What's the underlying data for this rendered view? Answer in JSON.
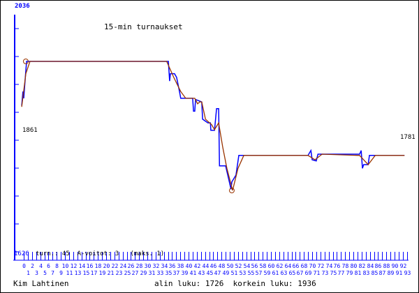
{
  "chart_data": {
    "type": "line",
    "title": "15-min turnaukset",
    "y_top_label": "2036",
    "y_bottom_label": "1626",
    "ylim": [
      1626,
      2036
    ],
    "start_label": "1861",
    "end_label": "1781",
    "info_line": "turn.: 45  A-voitot: 3   (maks. 1)",
    "x_ticks": [
      0,
      1,
      2,
      3,
      4,
      5,
      6,
      7,
      8,
      9,
      10,
      11,
      12,
      13,
      14,
      15,
      16,
      17,
      18,
      19,
      20,
      21,
      22,
      23,
      24,
      25,
      26,
      27,
      28,
      29,
      30,
      31,
      32,
      33,
      34,
      35,
      36,
      37,
      38,
      39,
      40,
      41,
      42,
      43,
      44,
      45,
      46,
      47,
      48,
      49,
      50,
      51,
      52,
      53,
      54,
      55,
      56,
      57,
      58,
      59,
      60,
      61,
      62,
      63,
      64,
      65,
      66,
      67,
      68,
      69,
      70,
      71,
      72,
      73,
      74,
      75,
      76,
      77,
      78,
      79,
      80,
      81,
      82,
      83,
      84,
      85,
      86,
      87,
      88,
      89,
      90,
      91,
      92,
      93
    ],
    "colors": {
      "rating": "#0000ff",
      "average": "#993300",
      "axis": "#0000ff"
    },
    "series": [
      {
        "x": [
          -0.5,
          -0.2,
          0,
          0.5,
          0.7,
          35.1,
          35.4,
          35.6,
          36.6,
          37.1,
          37.8,
          38.1,
          41.0,
          41.2,
          41.5,
          41.7,
          43.2,
          43.4,
          44.7,
          45.3,
          45.4,
          46.3,
          46.8,
          47.3,
          47.5,
          49.0,
          50.0,
          50.3,
          50.5,
          51.5,
          52.2,
          69.0,
          69.7,
          70.0,
          71.0,
          71.4,
          81.5,
          81.9,
          82.2,
          82.5,
          83.6,
          83.9,
          92.4
        ],
        "y": [
          1864,
          1887,
          1876,
          1921,
          1936,
          1936,
          1904,
          1916,
          1916,
          1910,
          1887,
          1876,
          1876,
          1855,
          1855,
          1874,
          1870,
          1842,
          1836,
          1836,
          1824,
          1824,
          1859,
          1859,
          1766,
          1766,
          1737,
          1728,
          1740,
          1751,
          1783,
          1783,
          1791,
          1776,
          1774,
          1785,
          1785,
          1791,
          1762,
          1768,
          1768,
          1783,
          1783
        ]
      },
      {
        "x": [
          -0.5,
          0.5,
          1.5,
          34.7,
          36.4,
          38.1,
          39.3,
          41.5,
          42.2,
          42.7,
          43.2,
          44.1,
          45.6,
          46.3,
          47.3,
          48.3,
          49.3,
          50.7,
          52.0,
          53.4,
          69.0,
          70.7,
          72.4,
          81.5,
          83.6,
          85.3,
          92.4
        ],
        "y": [
          1862,
          1916,
          1936,
          1936,
          1910,
          1887,
          1876,
          1876,
          1867,
          1870,
          1870,
          1842,
          1833,
          1825,
          1836,
          1796,
          1762,
          1726,
          1762,
          1783,
          1783,
          1776,
          1785,
          1783,
          1768,
          1783,
          1783
        ]
      }
    ],
    "markers": [
      {
        "label": "max",
        "x": 0.5,
        "y": 1936
      },
      {
        "label": "min",
        "x": 50.5,
        "y": 1726
      }
    ]
  },
  "footer": {
    "player": "Kim Lahtinen",
    "stats": "alin luku: 1726  korkein luku: 1936"
  }
}
